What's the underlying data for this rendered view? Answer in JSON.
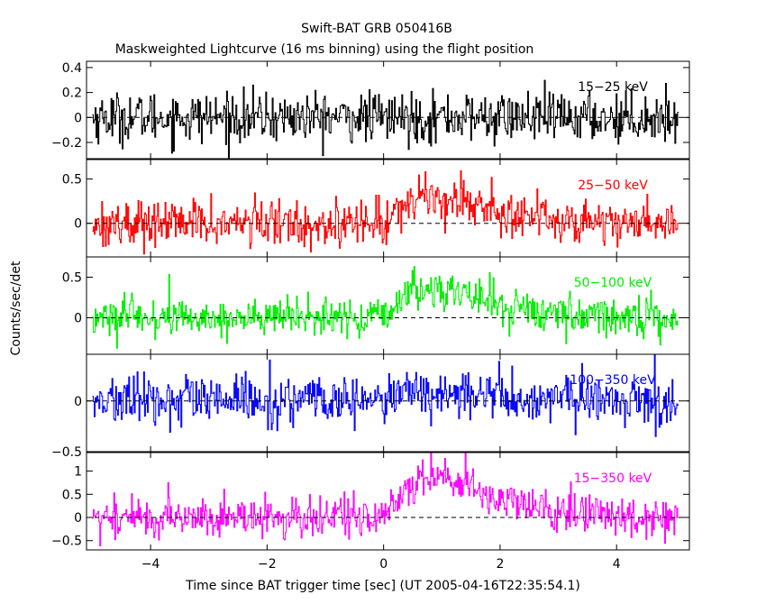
{
  "chart_data": {
    "type": "line",
    "title": "Swift-BAT GRB 050416B",
    "subtitle": "Maskweighted Lightcurve (16 ms binning) using the flight position",
    "xlabel": "Time since BAT trigger time [sec] (UT 2005-04-16T22:35:54.1)",
    "ylabel": "Counts/sec/det",
    "xlim": [
      -5.1,
      5.25
    ],
    "x_ticks": [
      -4,
      -2,
      0,
      2,
      4
    ],
    "x_tick_labels": [
      "−4",
      "−2",
      "0",
      "2",
      "4"
    ],
    "bin_width_sec": 0.016,
    "panels": [
      {
        "name": "15-25 keV",
        "label": "15−25 keV",
        "color": "#000000",
        "ylim": [
          -0.33,
          0.45
        ],
        "y_ticks": [
          -0.2,
          0,
          0.2,
          0.4
        ],
        "y_tick_labels": [
          "−0.2",
          "0",
          "0.2",
          "0.4"
        ],
        "noise_sigma": 0.1,
        "burst_peak": 0.0
      },
      {
        "name": "25-50 keV",
        "label": "25−50 keV",
        "color": "#ff0000",
        "ylim": [
          -0.38,
          0.72
        ],
        "y_ticks": [
          0,
          0.5
        ],
        "y_tick_labels": [
          "0",
          "0.5"
        ],
        "noise_sigma": 0.13,
        "burst_peak": 0.3
      },
      {
        "name": "50-100 keV",
        "label": "50−100 keV",
        "color": "#00ee00",
        "ylim": [
          -0.45,
          0.75
        ],
        "y_ticks": [
          0,
          0.5
        ],
        "y_tick_labels": [
          "0",
          "0.5"
        ],
        "noise_sigma": 0.12,
        "burst_peak": 0.35
      },
      {
        "name": "100-350 keV",
        "label": "100−350 keV",
        "color": "#0000ff",
        "ylim": [
          -0.5,
          0.46
        ],
        "y_ticks": [
          -0.5,
          0
        ],
        "y_tick_labels": [
          "−0.5",
          "0"
        ],
        "noise_sigma": 0.12,
        "burst_peak": 0.08
      },
      {
        "name": "15-350 keV",
        "label": "15−350 keV",
        "color": "#ff00ff",
        "ylim": [
          -0.7,
          1.4
        ],
        "y_ticks": [
          -0.5,
          0,
          0.5,
          1
        ],
        "y_tick_labels": [
          "−0.5",
          "0",
          "0.5",
          "1"
        ],
        "noise_sigma": 0.22,
        "burst_peak": 0.85
      }
    ],
    "grid": false,
    "zero_line": "dashed"
  }
}
